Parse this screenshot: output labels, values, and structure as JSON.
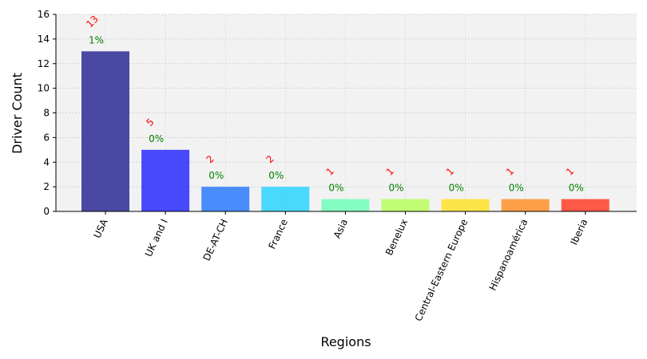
{
  "chart_data": {
    "type": "bar",
    "categories": [
      "USA",
      "UK and I",
      "DE-AT-CH",
      "France",
      "Asia",
      "Benelux",
      "Central-Eastern Europe",
      "Hispanoamérica",
      "Iberia"
    ],
    "values": [
      13,
      5,
      2,
      2,
      1,
      1,
      1,
      1,
      1
    ],
    "count_labels": [
      "13",
      "5",
      "2",
      "2",
      "1",
      "1",
      "1",
      "1",
      "1"
    ],
    "percent_labels": [
      "1%",
      "0%",
      "0%",
      "0%",
      "0%",
      "0%",
      "0%",
      "0%",
      "0%"
    ],
    "bar_colors": [
      "#2b2b95",
      "#2a2aff",
      "#2c7bff",
      "#2cd5ff",
      "#70ffb8",
      "#b8ff5e",
      "#ffe22a",
      "#ff902a",
      "#ff3f2a"
    ],
    "xlabel": "Regions",
    "ylabel": "Driver Count",
    "ylim": [
      0,
      16
    ],
    "yticks": [
      0,
      2,
      4,
      6,
      8,
      10,
      12,
      14,
      16
    ],
    "grid": true,
    "background_color": "#f2f2f2",
    "count_label_color": "#ff0000",
    "percent_label_color": "#008000"
  }
}
